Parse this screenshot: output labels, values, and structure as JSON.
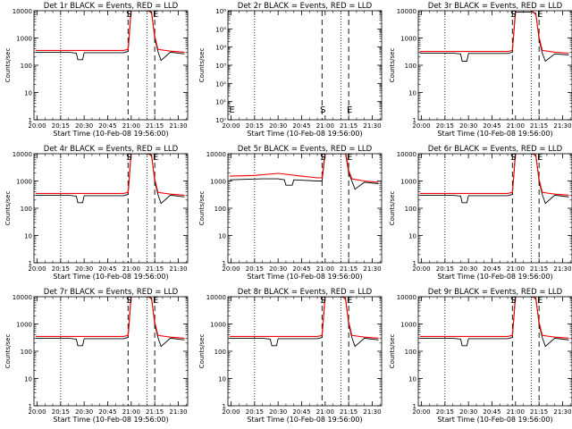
{
  "figure": {
    "xlabel": "Start Time (10-Feb-08 19:56:00)",
    "ylabel": "Counts/sec",
    "x_tick_labels": [
      "20:00",
      "20:15",
      "20:30",
      "20:45",
      "21:00",
      "21:15",
      "21:30"
    ],
    "series_colors": {
      "events": "#000000",
      "lld": "#ff0000"
    },
    "marker_style": {
      "dotted": "vertical dotted line",
      "dashed": "vertical dashed line"
    }
  },
  "chart_data": [
    {
      "type": "line",
      "title": "Det 1r BLACK = Events, RED = LLD",
      "xlim": [
        "19:58",
        "21:36"
      ],
      "ylim": [
        1,
        10000
      ],
      "yscale": "log",
      "y_tick_labels": [
        "1",
        "10",
        "100",
        "1000",
        "10000"
      ],
      "dotted_lines": [
        "20:15",
        "21:10"
      ],
      "dashed_lines": [
        "20:58",
        "21:15"
      ],
      "marker_labels": [
        {
          "text": "S",
          "x": "20:58"
        },
        {
          "text": "E",
          "x": "21:15"
        }
      ],
      "series": [
        {
          "key": "events",
          "x": [
            "19:59",
            "20:20",
            "20:25",
            "20:26",
            "20:29",
            "20:30",
            "20:55",
            "20:58",
            "21:00",
            "21:10",
            "21:13",
            "21:15",
            "21:17",
            "21:19",
            "21:25",
            "21:34"
          ],
          "values": [
            300,
            300,
            280,
            160,
            160,
            290,
            290,
            320,
            10000,
            10000,
            9000,
            1000,
            320,
            150,
            300,
            260
          ]
        },
        {
          "key": "lld",
          "x": [
            "19:59",
            "20:55",
            "20:58",
            "21:00",
            "21:10",
            "21:13",
            "21:15",
            "21:17",
            "21:25",
            "21:34"
          ],
          "values": [
            350,
            350,
            380,
            12000,
            12000,
            8000,
            1200,
            380,
            330,
            300
          ]
        }
      ]
    },
    {
      "type": "line",
      "title": "Det 2r BLACK = Events, RED = LLD",
      "xlim": [
        "19:58",
        "21:36"
      ],
      "ylim": [
        1,
        1000000
      ],
      "yscale": "log",
      "y_tick_labels": [
        "10⁰",
        "10¹",
        "10²",
        "10³",
        "10⁴",
        "10⁵",
        "10⁶"
      ],
      "dotted_lines": [
        "20:15",
        "21:10"
      ],
      "dashed_lines": [
        "20:58",
        "21:15"
      ],
      "marker_labels": [
        {
          "text": "E",
          "x": "20:00"
        },
        {
          "text": "S",
          "x": "20:58"
        },
        {
          "text": "E",
          "x": "21:15"
        }
      ],
      "series": []
    },
    {
      "type": "line",
      "title": "Det 3r BLACK = Events, RED = LLD",
      "xlim": [
        "19:58",
        "21:36"
      ],
      "ylim": [
        1,
        10000
      ],
      "yscale": "log",
      "y_tick_labels": [
        "1",
        "10",
        "100",
        "1000",
        "10000"
      ],
      "dotted_lines": [
        "20:15",
        "21:10"
      ],
      "dashed_lines": [
        "20:58",
        "21:15"
      ],
      "marker_labels": [
        {
          "text": "S",
          "x": "20:58"
        },
        {
          "text": "E",
          "x": "21:15"
        }
      ],
      "series": [
        {
          "key": "events",
          "x": [
            "19:59",
            "20:20",
            "20:25",
            "20:26",
            "20:29",
            "20:30",
            "20:55",
            "20:58",
            "21:00",
            "21:10",
            "21:13",
            "21:15",
            "21:17",
            "21:19",
            "21:25",
            "21:34"
          ],
          "values": [
            280,
            280,
            260,
            140,
            140,
            270,
            270,
            300,
            9000,
            9000,
            8000,
            900,
            280,
            140,
            260,
            240
          ]
        },
        {
          "key": "lld",
          "x": [
            "19:59",
            "20:55",
            "20:58",
            "21:00",
            "21:10",
            "21:13",
            "21:15",
            "21:17",
            "21:25",
            "21:34"
          ],
          "values": [
            320,
            320,
            350,
            11000,
            11000,
            7000,
            1100,
            350,
            300,
            280
          ]
        }
      ]
    },
    {
      "type": "line",
      "title": "Det 4r BLACK = Events, RED = LLD",
      "xlim": [
        "19:58",
        "21:36"
      ],
      "ylim": [
        1,
        10000
      ],
      "yscale": "log",
      "y_tick_labels": [
        "1",
        "10",
        "100",
        "1000",
        "10000"
      ],
      "dotted_lines": [
        "20:15",
        "21:10"
      ],
      "dashed_lines": [
        "20:58",
        "21:15"
      ],
      "marker_labels": [
        {
          "text": "S",
          "x": "20:58"
        },
        {
          "text": "E",
          "x": "21:15"
        }
      ],
      "series": [
        {
          "key": "events",
          "x": [
            "19:59",
            "20:20",
            "20:25",
            "20:26",
            "20:29",
            "20:30",
            "20:55",
            "20:58",
            "21:00",
            "21:10",
            "21:13",
            "21:15",
            "21:17",
            "21:19",
            "21:25",
            "21:34"
          ],
          "values": [
            300,
            300,
            280,
            160,
            160,
            290,
            290,
            320,
            10000,
            10000,
            9000,
            1000,
            320,
            150,
            300,
            260
          ]
        },
        {
          "key": "lld",
          "x": [
            "19:59",
            "20:55",
            "20:58",
            "21:00",
            "21:10",
            "21:13",
            "21:15",
            "21:17",
            "21:25",
            "21:34"
          ],
          "values": [
            350,
            350,
            380,
            12000,
            12000,
            8000,
            1200,
            380,
            330,
            300
          ]
        }
      ]
    },
    {
      "type": "line",
      "title": "Det 5r BLACK = Events, RED = LLD",
      "xlim": [
        "19:58",
        "21:36"
      ],
      "ylim": [
        1,
        10000
      ],
      "yscale": "log",
      "y_tick_labels": [
        "1",
        "10",
        "100",
        "1000",
        "10000"
      ],
      "dotted_lines": [
        "20:15",
        "21:10"
      ],
      "dashed_lines": [
        "20:58",
        "21:15"
      ],
      "marker_labels": [
        {
          "text": "S",
          "x": "20:58"
        },
        {
          "text": "E",
          "x": "21:15"
        }
      ],
      "series": [
        {
          "key": "events",
          "x": [
            "19:59",
            "20:20",
            "20:30",
            "20:34",
            "20:35",
            "20:39",
            "20:40",
            "20:55",
            "20:58",
            "21:00",
            "21:13",
            "21:15",
            "21:17",
            "21:19",
            "21:25",
            "21:34"
          ],
          "values": [
            1100,
            1200,
            1200,
            1100,
            700,
            700,
            1100,
            1000,
            1000,
            10000,
            10000,
            2000,
            1000,
            500,
            900,
            800
          ]
        },
        {
          "key": "lld",
          "x": [
            "19:59",
            "20:15",
            "20:30",
            "20:45",
            "20:55",
            "20:58",
            "21:00",
            "21:13",
            "21:15",
            "21:17",
            "21:25",
            "21:34"
          ],
          "values": [
            1500,
            1600,
            1900,
            1500,
            1300,
            1300,
            12000,
            12000,
            2500,
            1200,
            1000,
            900
          ]
        }
      ]
    },
    {
      "type": "line",
      "title": "Det 6r BLACK = Events, RED = LLD",
      "xlim": [
        "19:58",
        "21:36"
      ],
      "ylim": [
        1,
        10000
      ],
      "yscale": "log",
      "y_tick_labels": [
        "1",
        "10",
        "100",
        "1000",
        "10000"
      ],
      "dotted_lines": [
        "20:15",
        "21:10"
      ],
      "dashed_lines": [
        "20:58",
        "21:15"
      ],
      "marker_labels": [
        {
          "text": "S",
          "x": "20:58"
        },
        {
          "text": "E",
          "x": "21:15"
        }
      ],
      "series": [
        {
          "key": "events",
          "x": [
            "19:59",
            "20:20",
            "20:25",
            "20:26",
            "20:29",
            "20:30",
            "20:55",
            "20:58",
            "21:00",
            "21:10",
            "21:13",
            "21:15",
            "21:17",
            "21:19",
            "21:25",
            "21:34"
          ],
          "values": [
            300,
            300,
            280,
            160,
            160,
            290,
            290,
            320,
            10000,
            10000,
            9000,
            1000,
            320,
            150,
            300,
            260
          ]
        },
        {
          "key": "lld",
          "x": [
            "19:59",
            "20:55",
            "20:58",
            "21:00",
            "21:10",
            "21:13",
            "21:15",
            "21:17",
            "21:25",
            "21:34"
          ],
          "values": [
            350,
            350,
            380,
            12000,
            12000,
            8000,
            1200,
            380,
            330,
            300
          ]
        }
      ]
    },
    {
      "type": "line",
      "title": "Det 7r BLACK = Events, RED = LLD",
      "xlim": [
        "19:58",
        "21:36"
      ],
      "ylim": [
        1,
        10000
      ],
      "yscale": "log",
      "y_tick_labels": [
        "1",
        "10",
        "100",
        "1000",
        "10000"
      ],
      "dotted_lines": [
        "20:15",
        "21:10"
      ],
      "dashed_lines": [
        "20:58",
        "21:15"
      ],
      "marker_labels": [
        {
          "text": "S",
          "x": "20:58"
        },
        {
          "text": "E",
          "x": "21:15"
        }
      ],
      "series": [
        {
          "key": "events",
          "x": [
            "19:59",
            "20:20",
            "20:25",
            "20:26",
            "20:29",
            "20:30",
            "20:55",
            "20:58",
            "21:00",
            "21:10",
            "21:13",
            "21:15",
            "21:17",
            "21:19",
            "21:25",
            "21:34"
          ],
          "values": [
            300,
            300,
            280,
            160,
            160,
            290,
            290,
            320,
            10000,
            10000,
            9000,
            1000,
            320,
            150,
            300,
            260
          ]
        },
        {
          "key": "lld",
          "x": [
            "19:59",
            "20:55",
            "20:58",
            "21:00",
            "21:10",
            "21:13",
            "21:15",
            "21:17",
            "21:25",
            "21:34"
          ],
          "values": [
            350,
            350,
            380,
            12000,
            12000,
            8000,
            1200,
            380,
            330,
            300
          ]
        }
      ]
    },
    {
      "type": "line",
      "title": "Det 8r BLACK = Events, RED = LLD",
      "xlim": [
        "19:58",
        "21:36"
      ],
      "ylim": [
        1,
        10000
      ],
      "yscale": "log",
      "y_tick_labels": [
        "1",
        "10",
        "100",
        "1000",
        "10000"
      ],
      "dotted_lines": [
        "20:15",
        "21:10"
      ],
      "dashed_lines": [
        "20:58",
        "21:15"
      ],
      "marker_labels": [
        {
          "text": "S",
          "x": "20:58"
        },
        {
          "text": "E",
          "x": "21:15"
        }
      ],
      "series": [
        {
          "key": "events",
          "x": [
            "19:59",
            "20:20",
            "20:25",
            "20:26",
            "20:29",
            "20:30",
            "20:55",
            "20:58",
            "21:00",
            "21:10",
            "21:13",
            "21:15",
            "21:17",
            "21:19",
            "21:25",
            "21:34"
          ],
          "values": [
            300,
            300,
            280,
            160,
            160,
            290,
            290,
            320,
            10000,
            10000,
            9000,
            1000,
            320,
            150,
            300,
            260
          ]
        },
        {
          "key": "lld",
          "x": [
            "19:59",
            "20:55",
            "20:58",
            "21:00",
            "21:10",
            "21:13",
            "21:15",
            "21:17",
            "21:25",
            "21:34"
          ],
          "values": [
            350,
            350,
            380,
            12000,
            12000,
            8000,
            1200,
            380,
            330,
            300
          ]
        }
      ]
    },
    {
      "type": "line",
      "title": "Det 9r BLACK = Events, RED = LLD",
      "xlim": [
        "19:58",
        "21:36"
      ],
      "ylim": [
        1,
        10000
      ],
      "yscale": "log",
      "y_tick_labels": [
        "1",
        "10",
        "100",
        "1000",
        "10000"
      ],
      "dotted_lines": [
        "20:15",
        "21:10"
      ],
      "dashed_lines": [
        "20:58",
        "21:15"
      ],
      "marker_labels": [
        {
          "text": "S",
          "x": "20:58"
        },
        {
          "text": "E",
          "x": "21:15"
        }
      ],
      "series": [
        {
          "key": "events",
          "x": [
            "19:59",
            "20:20",
            "20:25",
            "20:26",
            "20:29",
            "20:30",
            "20:55",
            "20:58",
            "21:00",
            "21:10",
            "21:13",
            "21:15",
            "21:17",
            "21:19",
            "21:25",
            "21:34"
          ],
          "values": [
            300,
            300,
            280,
            160,
            160,
            290,
            290,
            320,
            10000,
            10000,
            9000,
            1000,
            320,
            150,
            300,
            260
          ]
        },
        {
          "key": "lld",
          "x": [
            "19:59",
            "20:55",
            "20:58",
            "21:00",
            "21:10",
            "21:13",
            "21:15",
            "21:17",
            "21:25",
            "21:34"
          ],
          "values": [
            350,
            350,
            380,
            12000,
            12000,
            8000,
            1200,
            380,
            330,
            300
          ]
        }
      ]
    }
  ]
}
